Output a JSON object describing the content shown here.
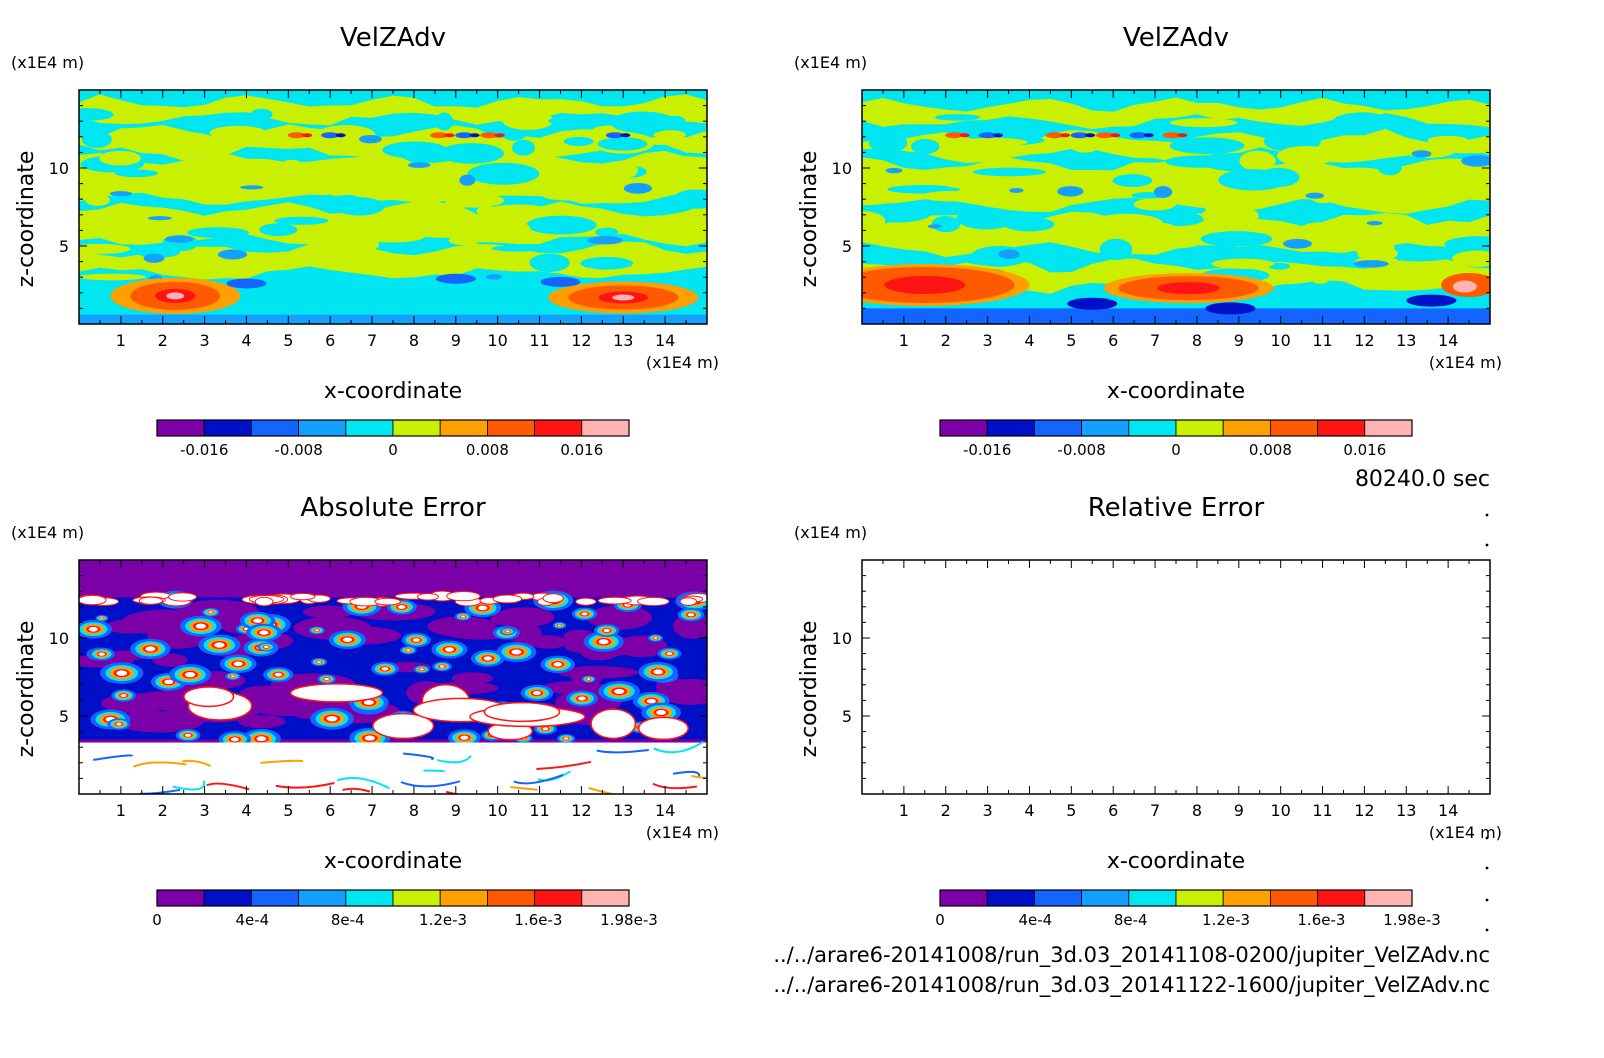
{
  "chart_data": [
    {
      "type": "heatmap",
      "title": "VelZAdv",
      "xlabel": "x-coordinate",
      "ylabel": "z-coordinate",
      "x_unit": "(x1E4 m)",
      "y_unit": "(x1E4 m)",
      "xlim": [
        0,
        15
      ],
      "ylim": [
        0,
        15
      ],
      "x_ticks": [
        "1",
        "2",
        "3",
        "4",
        "5",
        "6",
        "7",
        "8",
        "9",
        "10",
        "11",
        "12",
        "13",
        "14"
      ],
      "y_ticks": [
        "5",
        "10"
      ],
      "colorbar": {
        "levels": [
          -0.02,
          -0.016,
          -0.012,
          -0.008,
          -0.004,
          0,
          0.004,
          0.008,
          0.012,
          0.016,
          0.02
        ],
        "labels": [
          "-0.016",
          "-0.008",
          "0",
          "0.008",
          "0.016"
        ],
        "label_values": [
          -0.016,
          -0.008,
          0,
          0.008,
          0.016
        ]
      },
      "field": "velocity"
    },
    {
      "type": "heatmap",
      "title": "VelZAdv",
      "xlabel": "x-coordinate",
      "ylabel": "z-coordinate",
      "x_unit": "(x1E4 m)",
      "y_unit": "(x1E4 m)",
      "xlim": [
        0,
        15
      ],
      "ylim": [
        0,
        15
      ],
      "x_ticks": [
        "1",
        "2",
        "3",
        "4",
        "5",
        "6",
        "7",
        "8",
        "9",
        "10",
        "11",
        "12",
        "13",
        "14"
      ],
      "y_ticks": [
        "5",
        "10"
      ],
      "colorbar": {
        "levels": [
          -0.02,
          -0.016,
          -0.012,
          -0.008,
          -0.004,
          0,
          0.004,
          0.008,
          0.012,
          0.016,
          0.02
        ],
        "labels": [
          "-0.016",
          "-0.008",
          "0",
          "0.008",
          "0.016"
        ],
        "label_values": [
          -0.016,
          -0.008,
          0,
          0.008,
          0.016
        ]
      },
      "field": "velocity"
    },
    {
      "type": "heatmap",
      "title": "Absolute Error",
      "xlabel": "x-coordinate",
      "ylabel": "z-coordinate",
      "x_unit": "(x1E4 m)",
      "y_unit": "(x1E4 m)",
      "xlim": [
        0,
        15
      ],
      "ylim": [
        0,
        15
      ],
      "x_ticks": [
        "1",
        "2",
        "3",
        "4",
        "5",
        "6",
        "7",
        "8",
        "9",
        "10",
        "11",
        "12",
        "13",
        "14"
      ],
      "y_ticks": [
        "5",
        "10"
      ],
      "colorbar": {
        "levels": [
          0,
          0.0002,
          0.0004,
          0.0006,
          0.0008,
          0.001,
          0.0012,
          0.0014,
          0.0016,
          0.0018,
          0.00198
        ],
        "labels": [
          "0",
          "4e-4",
          "8e-4",
          "1.2e-3",
          "1.6e-3",
          "1.98e-3"
        ],
        "label_values": [
          0,
          0.0004,
          0.0008,
          0.0012,
          0.0016,
          0.00198
        ]
      },
      "field": "error"
    },
    {
      "type": "heatmap",
      "title": "Relative Error",
      "xlabel": "x-coordinate",
      "ylabel": "z-coordinate",
      "x_unit": "(x1E4 m)",
      "y_unit": "(x1E4 m)",
      "xlim": [
        0,
        15
      ],
      "ylim": [
        0,
        15
      ],
      "x_ticks": [
        "1",
        "2",
        "3",
        "4",
        "5",
        "6",
        "7",
        "8",
        "9",
        "10",
        "11",
        "12",
        "13",
        "14"
      ],
      "y_ticks": [
        "5",
        "10"
      ],
      "colorbar": {
        "levels": [
          0,
          0.0002,
          0.0004,
          0.0006,
          0.0008,
          0.001,
          0.0012,
          0.0014,
          0.0016,
          0.0018,
          0.00198
        ],
        "labels": [
          "0",
          "4e-4",
          "8e-4",
          "1.2e-3",
          "1.6e-3",
          "1.98e-3"
        ],
        "label_values": [
          0,
          0.0004,
          0.0008,
          0.0012,
          0.0016,
          0.00198
        ]
      },
      "field": "empty"
    }
  ],
  "colors": {
    "palette": [
      "#7b00a8",
      "#0010c8",
      "#1464ff",
      "#14a0ff",
      "#00e6f0",
      "#c8f000",
      "#ffa000",
      "#ff5a00",
      "#ff1414",
      "#ffb4b4"
    ],
    "white": "#ffffff"
  },
  "time_label": "80240.0 sec",
  "file_paths": [
    "../../arare6-20141008/run_3d.03_20141108-0200/jupiter_VelZAdv.nc",
    "../../arare6-20141008/run_3d.03_20141122-1600/jupiter_VelZAdv.nc"
  ]
}
